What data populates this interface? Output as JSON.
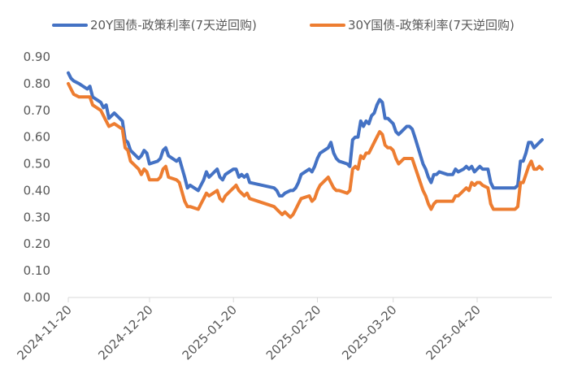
{
  "chart_data": {
    "type": "line",
    "title": "",
    "xlabel": "",
    "ylabel": "",
    "ylim": [
      0,
      0.9
    ],
    "y_ticks": [
      "0.00",
      "0.10",
      "0.20",
      "0.30",
      "0.40",
      "0.50",
      "0.60",
      "0.70",
      "0.80",
      "0.90"
    ],
    "x_range": [
      "2024-11-20",
      "2025-05-20"
    ],
    "x_ticks": [
      "2024-11-20",
      "2024-12-20",
      "2025-01-20",
      "2025-02-20",
      "2025-03-20",
      "2025-04-20"
    ],
    "grid": false,
    "legend_position": "top",
    "series": [
      {
        "name": "20Y国债-政策利率(7天逆回购)",
        "color": "#4472C4",
        "points": [
          [
            "2024-11-20",
            0.84
          ],
          [
            "2024-11-21",
            0.82
          ],
          [
            "2024-11-22",
            0.81
          ],
          [
            "2024-11-24",
            0.8
          ],
          [
            "2024-11-27",
            0.78
          ],
          [
            "2024-11-28",
            0.79
          ],
          [
            "2024-11-29",
            0.75
          ],
          [
            "2024-12-02",
            0.73
          ],
          [
            "2024-12-03",
            0.71
          ],
          [
            "2024-12-04",
            0.72
          ],
          [
            "2024-12-05",
            0.67
          ],
          [
            "2024-12-07",
            0.69
          ],
          [
            "2024-12-10",
            0.66
          ],
          [
            "2024-12-11",
            0.59
          ],
          [
            "2024-12-12",
            0.58
          ],
          [
            "2024-12-13",
            0.55
          ],
          [
            "2024-12-16",
            0.52
          ],
          [
            "2024-12-17",
            0.53
          ],
          [
            "2024-12-18",
            0.55
          ],
          [
            "2024-12-19",
            0.54
          ],
          [
            "2024-12-20",
            0.5
          ],
          [
            "2024-12-23",
            0.51
          ],
          [
            "2024-12-24",
            0.52
          ],
          [
            "2024-12-25",
            0.55
          ],
          [
            "2024-12-26",
            0.56
          ],
          [
            "2024-12-27",
            0.53
          ],
          [
            "2024-12-30",
            0.51
          ],
          [
            "2024-12-31",
            0.52
          ],
          [
            "2025-01-02",
            0.45
          ],
          [
            "2025-01-03",
            0.41
          ],
          [
            "2025-01-04",
            0.42
          ],
          [
            "2025-01-07",
            0.4
          ],
          [
            "2025-01-08",
            0.42
          ],
          [
            "2025-01-09",
            0.44
          ],
          [
            "2025-01-10",
            0.47
          ],
          [
            "2025-01-11",
            0.45
          ],
          [
            "2025-01-14",
            0.48
          ],
          [
            "2025-01-15",
            0.45
          ],
          [
            "2025-01-16",
            0.44
          ],
          [
            "2025-01-17",
            0.46
          ],
          [
            "2025-01-20",
            0.48
          ],
          [
            "2025-01-21",
            0.48
          ],
          [
            "2025-01-22",
            0.45
          ],
          [
            "2025-01-23",
            0.46
          ],
          [
            "2025-01-24",
            0.45
          ],
          [
            "2025-01-25",
            0.46
          ],
          [
            "2025-01-26",
            0.43
          ],
          [
            "2025-02-04",
            0.41
          ],
          [
            "2025-02-05",
            0.4
          ],
          [
            "2025-02-06",
            0.38
          ],
          [
            "2025-02-07",
            0.38
          ],
          [
            "2025-02-08",
            0.39
          ],
          [
            "2025-02-10",
            0.4
          ],
          [
            "2025-02-11",
            0.4
          ],
          [
            "2025-02-12",
            0.41
          ],
          [
            "2025-02-13",
            0.43
          ],
          [
            "2025-02-14",
            0.46
          ],
          [
            "2025-02-17",
            0.48
          ],
          [
            "2025-02-18",
            0.47
          ],
          [
            "2025-02-19",
            0.49
          ],
          [
            "2025-02-20",
            0.52
          ],
          [
            "2025-02-21",
            0.54
          ],
          [
            "2025-02-24",
            0.56
          ],
          [
            "2025-02-25",
            0.58
          ],
          [
            "2025-02-26",
            0.54
          ],
          [
            "2025-02-27",
            0.52
          ],
          [
            "2025-02-28",
            0.51
          ],
          [
            "2025-03-03",
            0.5
          ],
          [
            "2025-03-04",
            0.49
          ],
          [
            "2025-03-05",
            0.59
          ],
          [
            "2025-03-06",
            0.6
          ],
          [
            "2025-03-07",
            0.6
          ],
          [
            "2025-03-08",
            0.66
          ],
          [
            "2025-03-09",
            0.64
          ],
          [
            "2025-03-10",
            0.66
          ],
          [
            "2025-03-11",
            0.65
          ],
          [
            "2025-03-12",
            0.68
          ],
          [
            "2025-03-13",
            0.69
          ],
          [
            "2025-03-14",
            0.72
          ],
          [
            "2025-03-15",
            0.74
          ],
          [
            "2025-03-16",
            0.73
          ],
          [
            "2025-03-17",
            0.67
          ],
          [
            "2025-03-18",
            0.67
          ],
          [
            "2025-03-19",
            0.66
          ],
          [
            "2025-03-20",
            0.65
          ],
          [
            "2025-03-21",
            0.62
          ],
          [
            "2025-03-22",
            0.61
          ],
          [
            "2025-03-24",
            0.63
          ],
          [
            "2025-03-25",
            0.64
          ],
          [
            "2025-03-26",
            0.64
          ],
          [
            "2025-03-27",
            0.63
          ],
          [
            "2025-03-28",
            0.6
          ],
          [
            "2025-03-31",
            0.5
          ],
          [
            "2025-04-01",
            0.48
          ],
          [
            "2025-04-02",
            0.45
          ],
          [
            "2025-04-03",
            0.43
          ],
          [
            "2025-04-04",
            0.46
          ],
          [
            "2025-04-05",
            0.46
          ],
          [
            "2025-04-06",
            0.47
          ],
          [
            "2025-04-09",
            0.46
          ],
          [
            "2025-04-11",
            0.46
          ],
          [
            "2025-04-12",
            0.48
          ],
          [
            "2025-04-13",
            0.47
          ],
          [
            "2025-04-15",
            0.48
          ],
          [
            "2025-04-16",
            0.49
          ],
          [
            "2025-04-17",
            0.48
          ],
          [
            "2025-04-18",
            0.49
          ],
          [
            "2025-04-19",
            0.47
          ],
          [
            "2025-04-20",
            0.48
          ],
          [
            "2025-04-21",
            0.49
          ],
          [
            "2025-04-22",
            0.48
          ],
          [
            "2025-04-24",
            0.48
          ],
          [
            "2025-04-25",
            0.43
          ],
          [
            "2025-04-26",
            0.41
          ],
          [
            "2025-05-04",
            0.41
          ],
          [
            "2025-05-05",
            0.42
          ],
          [
            "2025-05-06",
            0.51
          ],
          [
            "2025-05-07",
            0.51
          ],
          [
            "2025-05-08",
            0.54
          ],
          [
            "2025-05-09",
            0.58
          ],
          [
            "2025-05-10",
            0.58
          ],
          [
            "2025-05-11",
            0.56
          ],
          [
            "2025-05-12",
            0.57
          ],
          [
            "2025-05-13",
            0.58
          ],
          [
            "2025-05-14",
            0.59
          ]
        ]
      },
      {
        "name": "30Y国债-政策利率(7天逆回购)",
        "color": "#ED7D31",
        "points": [
          [
            "2024-11-20",
            0.8
          ],
          [
            "2024-11-21",
            0.78
          ],
          [
            "2024-11-22",
            0.76
          ],
          [
            "2024-11-24",
            0.75
          ],
          [
            "2024-11-27",
            0.75
          ],
          [
            "2024-11-28",
            0.75
          ],
          [
            "2024-11-29",
            0.72
          ],
          [
            "2024-12-02",
            0.7
          ],
          [
            "2024-12-03",
            0.68
          ],
          [
            "2024-12-04",
            0.66
          ],
          [
            "2024-12-05",
            0.64
          ],
          [
            "2024-12-07",
            0.65
          ],
          [
            "2024-12-10",
            0.63
          ],
          [
            "2024-12-11",
            0.56
          ],
          [
            "2024-12-12",
            0.55
          ],
          [
            "2024-12-13",
            0.51
          ],
          [
            "2024-12-16",
            0.48
          ],
          [
            "2024-12-17",
            0.46
          ],
          [
            "2024-12-18",
            0.48
          ],
          [
            "2024-12-19",
            0.47
          ],
          [
            "2024-12-20",
            0.44
          ],
          [
            "2024-12-23",
            0.44
          ],
          [
            "2024-12-24",
            0.45
          ],
          [
            "2024-12-25",
            0.48
          ],
          [
            "2024-12-26",
            0.49
          ],
          [
            "2024-12-27",
            0.45
          ],
          [
            "2024-12-30",
            0.44
          ],
          [
            "2024-12-31",
            0.43
          ],
          [
            "2025-01-02",
            0.36
          ],
          [
            "2025-01-03",
            0.34
          ],
          [
            "2025-01-04",
            0.34
          ],
          [
            "2025-01-07",
            0.33
          ],
          [
            "2025-01-08",
            0.35
          ],
          [
            "2025-01-09",
            0.37
          ],
          [
            "2025-01-10",
            0.39
          ],
          [
            "2025-01-11",
            0.38
          ],
          [
            "2025-01-14",
            0.4
          ],
          [
            "2025-01-15",
            0.37
          ],
          [
            "2025-01-16",
            0.36
          ],
          [
            "2025-01-17",
            0.38
          ],
          [
            "2025-01-20",
            0.41
          ],
          [
            "2025-01-21",
            0.42
          ],
          [
            "2025-01-22",
            0.4
          ],
          [
            "2025-01-23",
            0.39
          ],
          [
            "2025-01-24",
            0.38
          ],
          [
            "2025-01-25",
            0.39
          ],
          [
            "2025-01-26",
            0.37
          ],
          [
            "2025-02-04",
            0.34
          ],
          [
            "2025-02-05",
            0.33
          ],
          [
            "2025-02-06",
            0.32
          ],
          [
            "2025-02-07",
            0.31
          ],
          [
            "2025-02-08",
            0.32
          ],
          [
            "2025-02-10",
            0.3
          ],
          [
            "2025-02-11",
            0.31
          ],
          [
            "2025-02-12",
            0.33
          ],
          [
            "2025-02-13",
            0.35
          ],
          [
            "2025-02-14",
            0.37
          ],
          [
            "2025-02-17",
            0.38
          ],
          [
            "2025-02-18",
            0.36
          ],
          [
            "2025-02-19",
            0.37
          ],
          [
            "2025-02-20",
            0.4
          ],
          [
            "2025-02-21",
            0.42
          ],
          [
            "2025-02-24",
            0.45
          ],
          [
            "2025-02-25",
            0.43
          ],
          [
            "2025-02-26",
            0.41
          ],
          [
            "2025-02-27",
            0.4
          ],
          [
            "2025-02-28",
            0.4
          ],
          [
            "2025-03-03",
            0.39
          ],
          [
            "2025-03-04",
            0.4
          ],
          [
            "2025-03-05",
            0.48
          ],
          [
            "2025-03-06",
            0.49
          ],
          [
            "2025-03-07",
            0.48
          ],
          [
            "2025-03-08",
            0.53
          ],
          [
            "2025-03-09",
            0.52
          ],
          [
            "2025-03-10",
            0.54
          ],
          [
            "2025-03-11",
            0.54
          ],
          [
            "2025-03-12",
            0.56
          ],
          [
            "2025-03-13",
            0.58
          ],
          [
            "2025-03-14",
            0.6
          ],
          [
            "2025-03-15",
            0.62
          ],
          [
            "2025-03-16",
            0.61
          ],
          [
            "2025-03-17",
            0.57
          ],
          [
            "2025-03-18",
            0.56
          ],
          [
            "2025-03-19",
            0.56
          ],
          [
            "2025-03-20",
            0.55
          ],
          [
            "2025-03-21",
            0.52
          ],
          [
            "2025-03-22",
            0.5
          ],
          [
            "2025-03-24",
            0.52
          ],
          [
            "2025-03-25",
            0.52
          ],
          [
            "2025-03-26",
            0.52
          ],
          [
            "2025-03-27",
            0.52
          ],
          [
            "2025-03-28",
            0.49
          ],
          [
            "2025-03-31",
            0.4
          ],
          [
            "2025-04-01",
            0.38
          ],
          [
            "2025-04-02",
            0.35
          ],
          [
            "2025-04-03",
            0.33
          ],
          [
            "2025-04-04",
            0.35
          ],
          [
            "2025-04-05",
            0.36
          ],
          [
            "2025-04-06",
            0.36
          ],
          [
            "2025-04-09",
            0.36
          ],
          [
            "2025-04-11",
            0.36
          ],
          [
            "2025-04-12",
            0.38
          ],
          [
            "2025-04-13",
            0.38
          ],
          [
            "2025-04-15",
            0.4
          ],
          [
            "2025-04-16",
            0.41
          ],
          [
            "2025-04-17",
            0.4
          ],
          [
            "2025-04-18",
            0.43
          ],
          [
            "2025-04-19",
            0.42
          ],
          [
            "2025-04-20",
            0.43
          ],
          [
            "2025-04-21",
            0.43
          ],
          [
            "2025-04-22",
            0.42
          ],
          [
            "2025-04-24",
            0.41
          ],
          [
            "2025-04-25",
            0.35
          ],
          [
            "2025-04-26",
            0.33
          ],
          [
            "2025-05-04",
            0.33
          ],
          [
            "2025-05-05",
            0.34
          ],
          [
            "2025-05-06",
            0.43
          ],
          [
            "2025-05-07",
            0.43
          ],
          [
            "2025-05-08",
            0.46
          ],
          [
            "2025-05-09",
            0.49
          ],
          [
            "2025-05-10",
            0.51
          ],
          [
            "2025-05-11",
            0.48
          ],
          [
            "2025-05-12",
            0.48
          ],
          [
            "2025-05-13",
            0.49
          ],
          [
            "2025-05-14",
            0.48
          ]
        ]
      }
    ]
  }
}
